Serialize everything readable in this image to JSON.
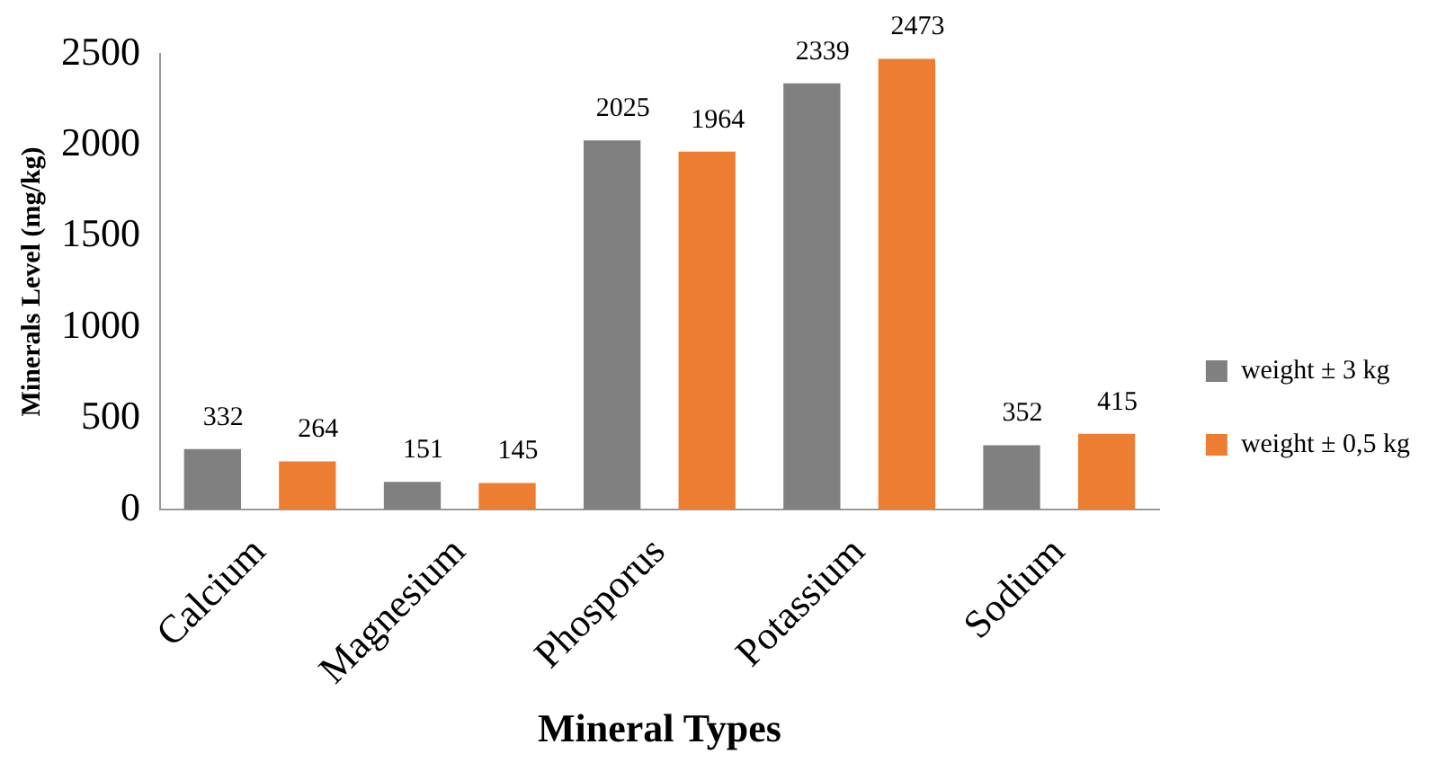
{
  "chart_data": {
    "type": "bar",
    "xlabel": "Mineral Types",
    "ylabel": "Minerals Level (mg/kg)",
    "categories": [
      "Calcium",
      "Magnesium",
      "Phosporus",
      "Potassium",
      "Sodium"
    ],
    "series": [
      {
        "name": "weight ± 3 kg",
        "color": "#808080",
        "values": [
          332,
          151,
          2025,
          2339,
          352
        ]
      },
      {
        "name": "weight ± 0,5 kg",
        "color": "#ed7d31",
        "values": [
          264,
          145,
          1964,
          2473,
          415
        ]
      }
    ],
    "ylim": [
      0,
      2500
    ],
    "yticks": [
      0,
      500,
      1000,
      1500,
      2000,
      2500
    ],
    "grid": false,
    "legend": "right",
    "data_labels": true
  }
}
